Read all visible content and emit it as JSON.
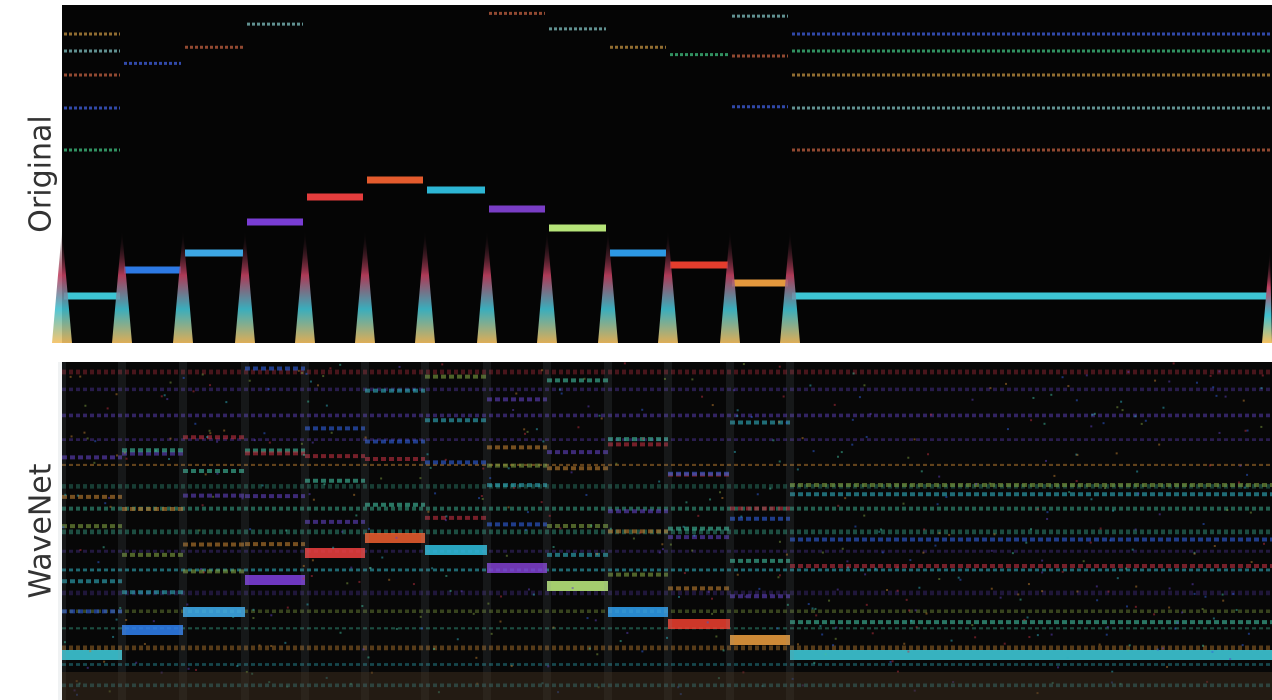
{
  "panels": [
    {
      "label": "Original"
    },
    {
      "label": "WaveNet"
    }
  ]
}
